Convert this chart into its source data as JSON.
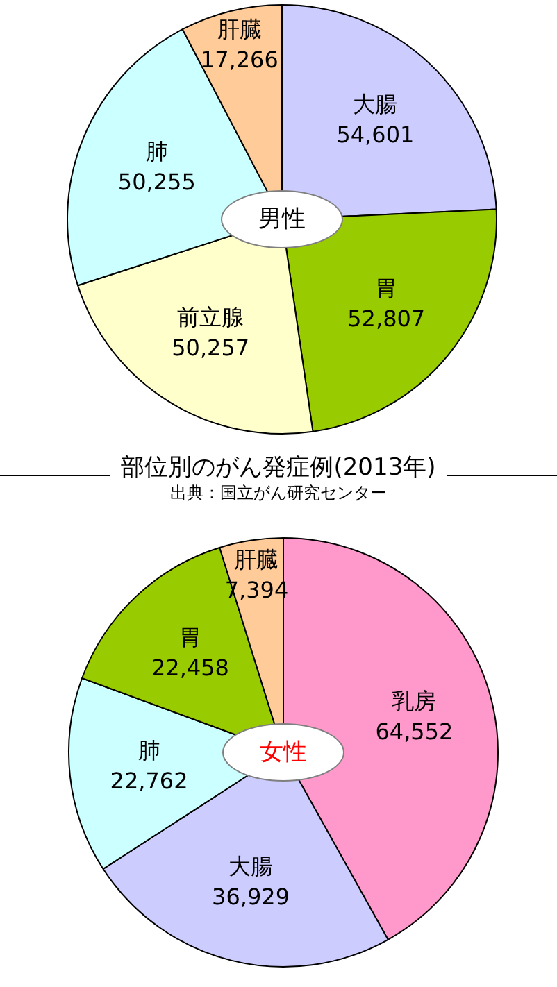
{
  "chart_data": [
    {
      "type": "pie",
      "title": "男性",
      "categories": [
        "大腸",
        "胃",
        "前立腺",
        "肺",
        "肝臓"
      ],
      "values": [
        54601,
        52807,
        50257,
        50255,
        17266
      ],
      "value_labels": [
        "54,601",
        "52,807",
        "50,257",
        "50,255",
        "17,266"
      ],
      "colors": [
        "#ccccff",
        "#99cc00",
        "#ffffcc",
        "#ccffff",
        "#ffcc99"
      ],
      "annotations": [
        "部位別のがん発症例(2013年)",
        "出典：国立がん研究センター"
      ]
    },
    {
      "type": "pie",
      "title": "女性",
      "categories": [
        "乳房",
        "大腸",
        "肺",
        "胃",
        "肝臓"
      ],
      "values": [
        64552,
        36929,
        22762,
        22458,
        7394
      ],
      "value_labels": [
        "64,552",
        "36,929",
        "22,762",
        "22,458",
        "7,394"
      ],
      "colors": [
        "#ff99cc",
        "#ccccff",
        "#ccffff",
        "#99cc00",
        "#ffcc99"
      ]
    }
  ]
}
